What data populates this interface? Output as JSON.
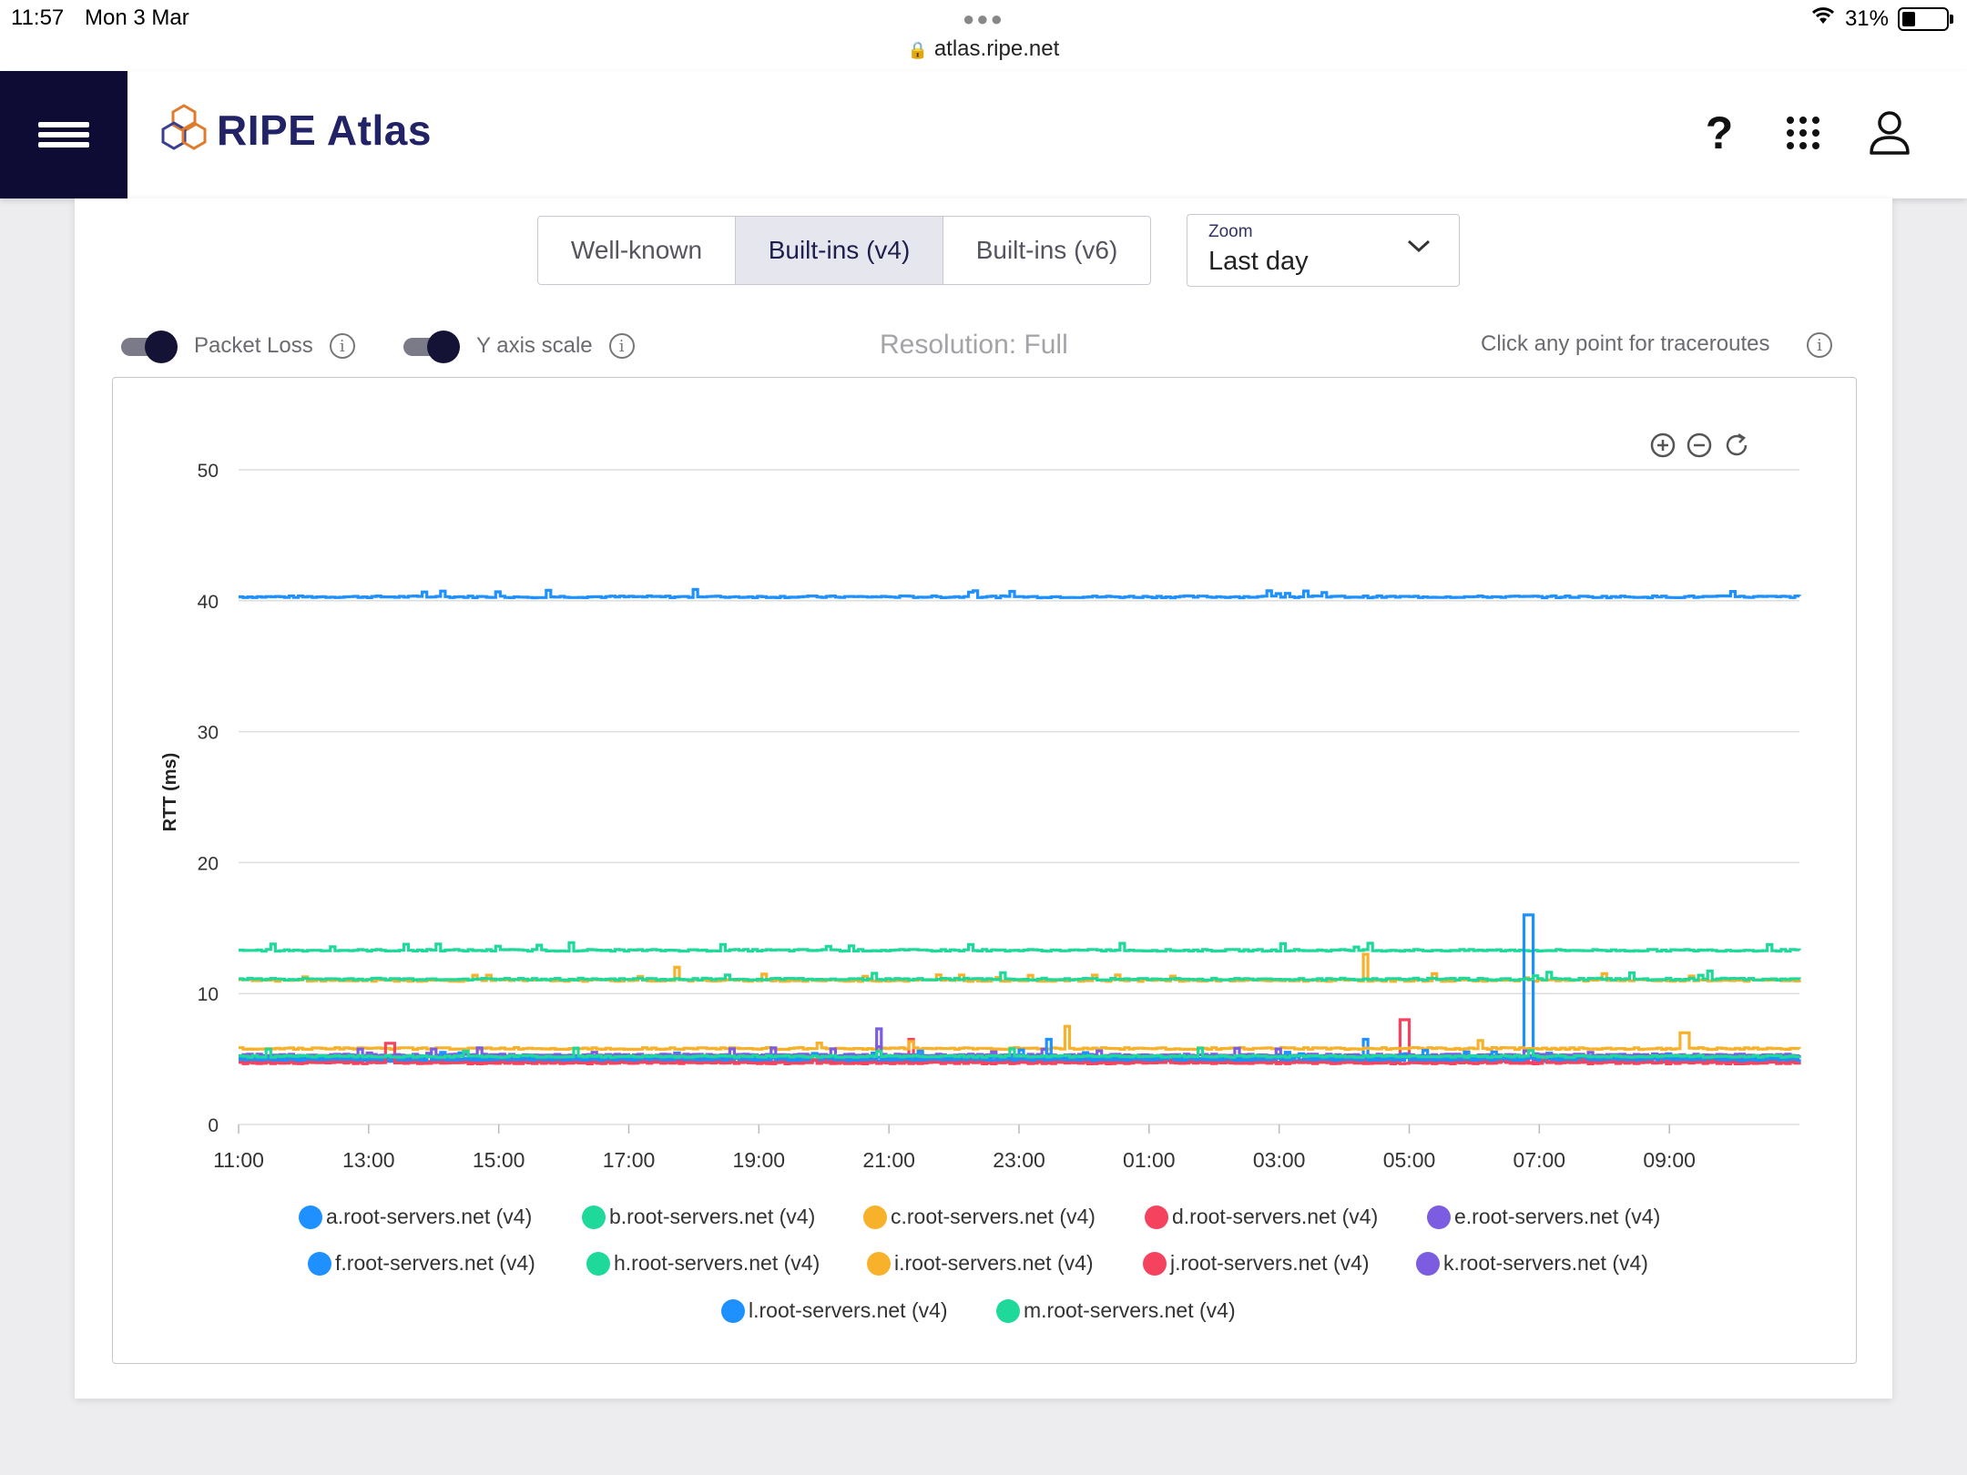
{
  "status_bar": {
    "time": "11:57",
    "date": "Mon 3 Mar",
    "url": "atlas.ripe.net",
    "battery": "31%",
    "battery_level": 0.31
  },
  "header": {
    "brand": "RIPE Atlas"
  },
  "tabs": [
    {
      "label": "Well-known",
      "active": false
    },
    {
      "label": "Built-ins (v4)",
      "active": true
    },
    {
      "label": "Built-ins (v6)",
      "active": false
    }
  ],
  "zoom": {
    "label": "Zoom",
    "value": "Last day"
  },
  "controls": {
    "packet_loss_label": "Packet Loss",
    "packet_loss_on": true,
    "y_axis_label": "Y axis scale",
    "y_axis_on": true,
    "resolution": "Resolution: Full",
    "traceroute_hint": "Click any point for traceroutes"
  },
  "chart_data": {
    "type": "line",
    "ylabel": "RTT (ms)",
    "xlabel": "",
    "ylim": [
      0,
      50
    ],
    "yticks": [
      0,
      10,
      20,
      30,
      40,
      50
    ],
    "x_ticks": [
      "11:00",
      "13:00",
      "15:00",
      "17:00",
      "19:00",
      "21:00",
      "23:00",
      "01:00",
      "03:00",
      "05:00",
      "07:00",
      "09:00"
    ],
    "grid": true,
    "legend_position": "bottom",
    "series": [
      {
        "name": "a.root-servers.net (v4)",
        "color": "#1e90ff",
        "baseline": 40.3,
        "spikes": []
      },
      {
        "name": "b.root-servers.net (v4)",
        "color": "#1fd99a",
        "baseline": 13.3,
        "spikes": []
      },
      {
        "name": "c.root-servers.net (v4)",
        "color": "#f8b12a",
        "baseline": 11.0,
        "spikes": [
          {
            "t": 17.7,
            "v": 12.0
          },
          {
            "t": 28.3,
            "v": 13.0
          }
        ]
      },
      {
        "name": "d.root-servers.net (v4)",
        "color": "#f5425f",
        "baseline": 4.8,
        "spikes": [
          {
            "t": 21.3,
            "v": 6.5
          },
          {
            "t": 28.9,
            "v": 8.0
          }
        ]
      },
      {
        "name": "e.root-servers.net (v4)",
        "color": "#7c5ce0",
        "baseline": 5.0,
        "spikes": [
          {
            "t": 20.8,
            "v": 7.3
          }
        ]
      },
      {
        "name": "f.root-servers.net (v4)",
        "color": "#1e90ff",
        "baseline": 4.9,
        "spikes": [
          {
            "t": 28.3,
            "v": 6.5
          },
          {
            "t": 30.8,
            "v": 16.0
          }
        ]
      },
      {
        "name": "h.root-servers.net (v4)",
        "color": "#1fd99a",
        "baseline": 11.1,
        "spikes": []
      },
      {
        "name": "i.root-servers.net (v4)",
        "color": "#f8b12a",
        "baseline": 5.8,
        "spikes": [
          {
            "t": 23.7,
            "v": 7.5
          },
          {
            "t": 33.2,
            "v": 7.0
          }
        ]
      },
      {
        "name": "j.root-servers.net (v4)",
        "color": "#f5425f",
        "baseline": 4.7,
        "spikes": [
          {
            "t": 13.3,
            "v": 6.2
          }
        ]
      },
      {
        "name": "k.root-servers.net (v4)",
        "color": "#7c5ce0",
        "baseline": 5.3,
        "spikes": []
      },
      {
        "name": "l.root-servers.net (v4)",
        "color": "#1e90ff",
        "baseline": 5.1,
        "spikes": [
          {
            "t": 23.4,
            "v": 6.5
          }
        ]
      },
      {
        "name": "m.root-servers.net (v4)",
        "color": "#1fd99a",
        "baseline": 5.2,
        "spikes": []
      }
    ]
  }
}
